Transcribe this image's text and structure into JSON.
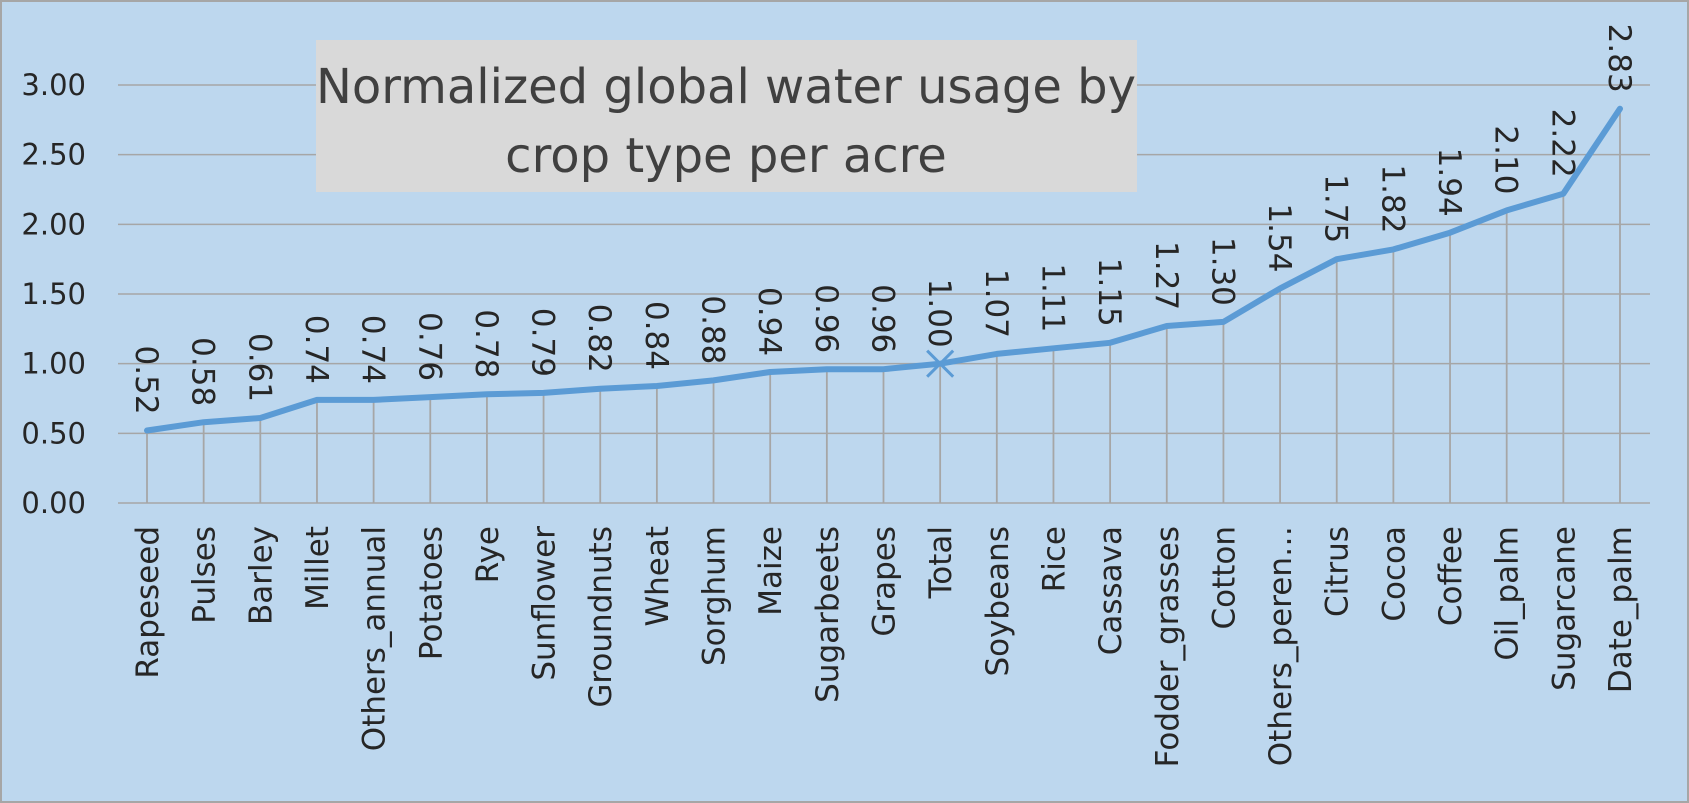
{
  "colors": {
    "background": "#bdd7ee",
    "border": "#a6a6a6",
    "title_box": "#d9d9d9",
    "line": "#5b9bd5",
    "gridline": "#a6a6a6",
    "drop_line": "#a6a6a6",
    "text": "#262626"
  },
  "chart_data": {
    "type": "line",
    "title": "Normalized global water usage by crop type per acre",
    "title_lines": [
      "Normalized global water usage by",
      "crop type per acre"
    ],
    "xlabel": "",
    "ylabel": "",
    "ylim": [
      0,
      3.0
    ],
    "yticks": [
      "0.00",
      "0.50",
      "1.00",
      "1.50",
      "2.00",
      "2.50",
      "3.00"
    ],
    "grid": true,
    "legend": "none",
    "drop_lines": true,
    "highlight_marker": {
      "category": "Total",
      "symbol": "x"
    },
    "categories": [
      "Rapeseed",
      "Pulses",
      "Barley",
      "Millet",
      "Others_annual",
      "Potatoes",
      "Rye",
      "Sunflower",
      "Groundnuts",
      "Wheat",
      "Sorghum",
      "Maize",
      "Sugarbeets",
      "Grapes",
      "Total",
      "Soybeans",
      "Rice",
      "Cassava",
      "Fodder_grasses",
      "Cotton",
      "Others_peren…",
      "Citrus",
      "Cocoa",
      "Coffee",
      "Oil_palm",
      "Sugarcane",
      "Date_palm"
    ],
    "values": [
      0.52,
      0.58,
      0.61,
      0.74,
      0.74,
      0.76,
      0.78,
      0.79,
      0.82,
      0.84,
      0.88,
      0.94,
      0.96,
      0.96,
      1.0,
      1.07,
      1.11,
      1.15,
      1.27,
      1.3,
      1.54,
      1.75,
      1.82,
      1.94,
      2.1,
      2.22,
      2.83
    ],
    "data_labels": [
      "0.52",
      "0.58",
      "0.61",
      "0.74",
      "0.74",
      "0.76",
      "0.78",
      "0.79",
      "0.82",
      "0.84",
      "0.88",
      "0.94",
      "0.96",
      "0.96",
      "1.00",
      "1.07",
      "1.11",
      "1.15",
      "1.27",
      "1.30",
      "1.54",
      "1.75",
      "1.82",
      "1.94",
      "2.10",
      "2.22",
      "2.83"
    ]
  }
}
